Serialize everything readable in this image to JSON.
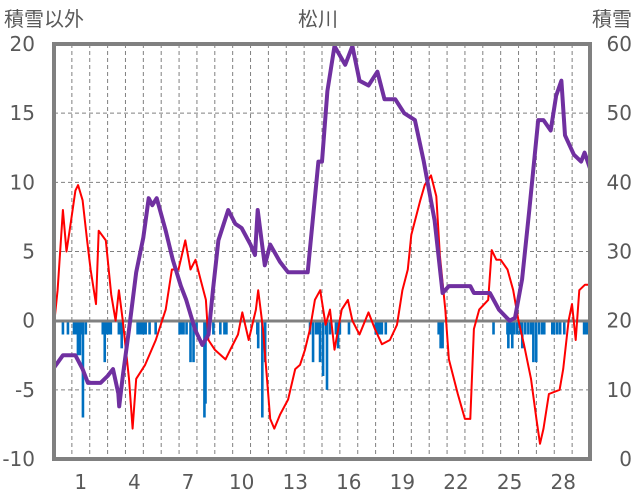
{
  "chart_data": {
    "type": "line",
    "title": "松川",
    "ylabel_left": "積雪以外",
    "ylabel_right": "積雪",
    "ylim_left": [
      -10,
      20
    ],
    "ylim_right": [
      0,
      60
    ],
    "xlim": [
      0,
      30
    ],
    "yticks_left": [
      "20",
      "15",
      "10",
      "5",
      "0",
      "-5",
      "-10"
    ],
    "yticks_right": [
      "60",
      "50",
      "40",
      "30",
      "20",
      "10",
      "0"
    ],
    "xticks": [
      "1",
      "4",
      "7",
      "10",
      "13",
      "16",
      "19",
      "22",
      "25",
      "28"
    ],
    "grid": true,
    "colors": {
      "temperature": "#FF0000",
      "snow": "#7030A0",
      "precip": "#0070C0",
      "axis": "#808080",
      "text": "#595959"
    },
    "series": [
      {
        "name": "temperature",
        "axis": "left",
        "points": [
          [
            0,
            -0.3
          ],
          [
            0.2,
            2.2
          ],
          [
            0.5,
            8
          ],
          [
            0.7,
            5
          ],
          [
            0.95,
            7.2
          ],
          [
            1.2,
            9.4
          ],
          [
            1.35,
            9.8
          ],
          [
            1.6,
            8.7
          ],
          [
            1.85,
            5.8
          ],
          [
            2.05,
            3.7
          ],
          [
            2.35,
            1.2
          ],
          [
            2.5,
            6.5
          ],
          [
            2.9,
            5.8
          ],
          [
            3.2,
            1.9
          ],
          [
            3.45,
            0
          ],
          [
            3.63,
            2.2
          ],
          [
            3.85,
            0
          ],
          [
            4.2,
            -4.2
          ],
          [
            4.4,
            -7.8
          ],
          [
            4.6,
            -4.2
          ],
          [
            5.1,
            -3.2
          ],
          [
            5.7,
            -1.4
          ],
          [
            6.25,
            0.8
          ],
          [
            6.6,
            3.7
          ],
          [
            6.97,
            3.7
          ],
          [
            7.35,
            5.8
          ],
          [
            7.64,
            3.7
          ],
          [
            7.92,
            4.4
          ],
          [
            8.2,
            3
          ],
          [
            8.5,
            1.5
          ],
          [
            8.64,
            -1.4
          ],
          [
            9.0,
            -2.1
          ],
          [
            9.6,
            -2.8
          ],
          [
            9.87,
            -2.1
          ],
          [
            10.3,
            -1
          ],
          [
            10.54,
            0.6
          ],
          [
            10.9,
            -1.4
          ],
          [
            11.3,
            0.8
          ],
          [
            11.43,
            2.2
          ],
          [
            11.7,
            -0.6
          ],
          [
            12.1,
            -7.1
          ],
          [
            12.33,
            -7.8
          ],
          [
            12.65,
            -6.8
          ],
          [
            13.1,
            -5.7
          ],
          [
            13.5,
            -3.5
          ],
          [
            13.77,
            -3.2
          ],
          [
            14.05,
            -2.1
          ],
          [
            14.33,
            -0.6
          ],
          [
            14.6,
            1.5
          ],
          [
            14.9,
            2.2
          ],
          [
            15.2,
            -0.3
          ],
          [
            15.45,
            0.8
          ],
          [
            15.7,
            -2.1
          ],
          [
            16.1,
            0.8
          ],
          [
            16.45,
            1.5
          ],
          [
            16.7,
            0
          ],
          [
            17.1,
            -1
          ],
          [
            17.6,
            0.6
          ],
          [
            17.96,
            -0.6
          ],
          [
            18.35,
            -1.7
          ],
          [
            18.8,
            -1.4
          ],
          [
            19.2,
            -0.3
          ],
          [
            19.5,
            2.2
          ],
          [
            19.8,
            3.7
          ],
          [
            20.0,
            6.2
          ],
          [
            20.5,
            8.7
          ],
          [
            20.75,
            9.8
          ],
          [
            21.1,
            10.5
          ],
          [
            21.4,
            9
          ],
          [
            21.6,
            4.7
          ],
          [
            21.9,
            0.8
          ],
          [
            22.1,
            -2.8
          ],
          [
            22.6,
            -5.3
          ],
          [
            23.0,
            -7.1
          ],
          [
            23.3,
            -7.1
          ],
          [
            23.5,
            -0.6
          ],
          [
            23.8,
            0.8
          ],
          [
            24.3,
            1.5
          ],
          [
            24.5,
            5.1
          ],
          [
            24.76,
            4.4
          ],
          [
            25.0,
            4.4
          ],
          [
            25.38,
            3.7
          ],
          [
            25.7,
            2.2
          ],
          [
            26.0,
            0
          ],
          [
            26.3,
            -1.7
          ],
          [
            26.7,
            -4.2
          ],
          [
            27.0,
            -7.1
          ],
          [
            27.2,
            -8.9
          ],
          [
            27.4,
            -7.8
          ],
          [
            27.7,
            -5.3
          ],
          [
            28.3,
            -5
          ],
          [
            28.5,
            -3.5
          ],
          [
            28.8,
            0
          ],
          [
            28.99,
            1.2
          ],
          [
            29.2,
            -1.4
          ],
          [
            29.4,
            2.2
          ],
          [
            29.72,
            2.6
          ],
          [
            30,
            2.6
          ]
        ]
      },
      {
        "name": "snow_depth",
        "axis": "right",
        "points": [
          [
            0,
            13.2
          ],
          [
            0.5,
            15
          ],
          [
            1.2,
            15
          ],
          [
            1.6,
            13
          ],
          [
            1.9,
            11
          ],
          [
            2.6,
            11
          ],
          [
            3.0,
            12
          ],
          [
            3.3,
            13
          ],
          [
            3.6,
            9.5
          ],
          [
            3.65,
            7.6
          ],
          [
            3.85,
            12
          ],
          [
            4.2,
            18.7
          ],
          [
            4.6,
            27
          ],
          [
            5.0,
            32
          ],
          [
            5.3,
            37.7
          ],
          [
            5.5,
            36.7
          ],
          [
            5.75,
            37.7
          ],
          [
            6.25,
            33
          ],
          [
            6.65,
            28.8
          ],
          [
            7.1,
            25
          ],
          [
            7.4,
            23
          ],
          [
            7.9,
            18.7
          ],
          [
            8.3,
            16.5
          ],
          [
            8.65,
            18
          ],
          [
            8.9,
            24.5
          ],
          [
            9.2,
            31.6
          ],
          [
            9.75,
            36
          ],
          [
            10.15,
            34
          ],
          [
            10.5,
            33.4
          ],
          [
            11.0,
            31
          ],
          [
            11.25,
            29.5
          ],
          [
            11.4,
            36
          ],
          [
            11.65,
            31
          ],
          [
            11.8,
            28
          ],
          [
            12.1,
            31
          ],
          [
            12.65,
            28.5
          ],
          [
            13.1,
            27
          ],
          [
            14.2,
            27
          ],
          [
            14.8,
            43
          ],
          [
            15.0,
            43
          ],
          [
            15.3,
            53.2
          ],
          [
            15.7,
            59.7
          ],
          [
            16.3,
            57
          ],
          [
            16.7,
            59.7
          ],
          [
            17.1,
            54.7
          ],
          [
            17.6,
            54
          ],
          [
            18.1,
            56
          ],
          [
            18.5,
            52
          ],
          [
            19.1,
            52
          ],
          [
            19.6,
            50
          ],
          [
            20.2,
            49
          ],
          [
            20.7,
            43
          ],
          [
            21.3,
            34.5
          ],
          [
            21.75,
            24
          ],
          [
            22.1,
            25
          ],
          [
            23.3,
            25
          ],
          [
            23.5,
            24
          ],
          [
            24.4,
            24
          ],
          [
            24.9,
            21.6
          ],
          [
            25.5,
            20
          ],
          [
            25.8,
            20.4
          ],
          [
            26.2,
            26
          ],
          [
            26.6,
            36
          ],
          [
            27.1,
            49
          ],
          [
            27.4,
            49
          ],
          [
            27.8,
            47.5
          ],
          [
            28.1,
            52.5
          ],
          [
            28.4,
            54.7
          ],
          [
            28.6,
            46.8
          ],
          [
            29.1,
            44
          ],
          [
            29.5,
            43
          ],
          [
            29.7,
            44.3
          ],
          [
            30,
            42
          ]
        ]
      },
      {
        "name": "precipitation",
        "axis": "left",
        "type": "bar",
        "points": [
          [
            0.5,
            -1
          ],
          [
            0.78,
            -1
          ],
          [
            1.12,
            -1
          ],
          [
            1.23,
            -1
          ],
          [
            1.34,
            -2.5
          ],
          [
            1.45,
            -2.5
          ],
          [
            1.56,
            -1
          ],
          [
            1.62,
            -7
          ],
          [
            1.78,
            -1
          ],
          [
            2.73,
            -1
          ],
          [
            2.84,
            -3
          ],
          [
            2.96,
            -1
          ],
          [
            3.07,
            -1
          ],
          [
            3.18,
            -1
          ],
          [
            3.63,
            -1
          ],
          [
            3.74,
            -1
          ],
          [
            3.79,
            -2
          ],
          [
            4.68,
            -1
          ],
          [
            4.8,
            -1
          ],
          [
            4.91,
            -1
          ],
          [
            5.02,
            -1
          ],
          [
            5.13,
            -1
          ],
          [
            5.35,
            -1
          ],
          [
            5.69,
            -1
          ],
          [
            7.03,
            -1
          ],
          [
            7.14,
            -1
          ],
          [
            7.25,
            -1
          ],
          [
            7.42,
            -1
          ],
          [
            7.64,
            -3
          ],
          [
            7.81,
            -3
          ],
          [
            7.98,
            -1
          ],
          [
            8.42,
            -7
          ],
          [
            8.48,
            -6
          ],
          [
            8.6,
            -1
          ],
          [
            8.92,
            -1
          ],
          [
            9.31,
            -1
          ],
          [
            9.54,
            -1
          ],
          [
            9.65,
            -1
          ],
          [
            11.38,
            -1
          ],
          [
            11.43,
            -2
          ],
          [
            11.66,
            -7
          ],
          [
            11.82,
            -3
          ],
          [
            14.33,
            -1
          ],
          [
            14.5,
            -3
          ],
          [
            14.67,
            -1
          ],
          [
            14.78,
            -1
          ],
          [
            14.89,
            -3
          ],
          [
            15.06,
            -4
          ],
          [
            15.23,
            -1
          ],
          [
            15.28,
            -5
          ],
          [
            15.45,
            -1
          ],
          [
            15.78,
            -1
          ],
          [
            15.9,
            -2
          ],
          [
            16.0,
            -1
          ],
          [
            16.51,
            -1
          ],
          [
            18.01,
            -1
          ],
          [
            18.13,
            -1
          ],
          [
            18.24,
            -1
          ],
          [
            18.35,
            -1
          ],
          [
            18.57,
            -1
          ],
          [
            21.53,
            -1
          ],
          [
            21.64,
            -2
          ],
          [
            21.75,
            -2
          ],
          [
            24.6,
            -1
          ],
          [
            25.38,
            -1
          ],
          [
            25.43,
            -2
          ],
          [
            25.54,
            -1
          ],
          [
            25.65,
            -2
          ],
          [
            25.77,
            -1
          ],
          [
            25.93,
            -1
          ],
          [
            26.1,
            -1
          ],
          [
            26.21,
            -2
          ],
          [
            26.38,
            -1
          ],
          [
            26.55,
            -1
          ],
          [
            26.71,
            -1
          ],
          [
            26.83,
            -3
          ],
          [
            26.99,
            -3
          ],
          [
            27.16,
            -1
          ],
          [
            27.33,
            -1
          ],
          [
            27.44,
            -1
          ],
          [
            27.89,
            -1
          ],
          [
            28.0,
            -1
          ],
          [
            28.17,
            -1
          ],
          [
            28.33,
            -1
          ],
          [
            28.56,
            -1
          ],
          [
            29.67,
            -1
          ],
          [
            29.78,
            -1
          ],
          [
            29.89,
            -1
          ]
        ]
      }
    ]
  }
}
